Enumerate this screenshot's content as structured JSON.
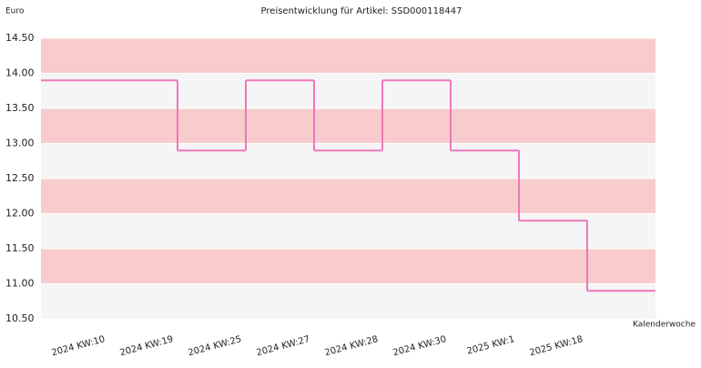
{
  "chart_data": {
    "type": "step",
    "title": "Preisentwicklung für Artikel: SSD000118447",
    "y_label": "Euro",
    "x_label": "Kalenderwoche",
    "categories": [
      "2024 KW:10",
      "2024 KW:19",
      "2024 KW:25",
      "2024 KW:27",
      "2024 KW:28",
      "2024 KW:30",
      "2025 KW:1",
      "2025 KW:18"
    ],
    "values": [
      13.9,
      12.9,
      13.9,
      12.9,
      13.9,
      12.9,
      11.9,
      10.9
    ],
    "color": "#ee77bb",
    "band_colors": [
      "#f8cccc",
      "#f5f5f5"
    ],
    "ylim": [
      10.5,
      14.5
    ],
    "yticks": [
      {
        "value": 10.5,
        "label": "10.50"
      },
      {
        "value": 11,
        "label": "11.00"
      },
      {
        "value": 11.5,
        "label": "11.50"
      },
      {
        "value": 12,
        "label": "12.00"
      },
      {
        "value": 12.5,
        "label": "12.50"
      },
      {
        "value": 13,
        "label": "13.00"
      },
      {
        "value": 13.5,
        "label": "13.50"
      },
      {
        "value": 14,
        "label": "14.00"
      },
      {
        "value": 14.5,
        "label": "14.50"
      }
    ]
  }
}
